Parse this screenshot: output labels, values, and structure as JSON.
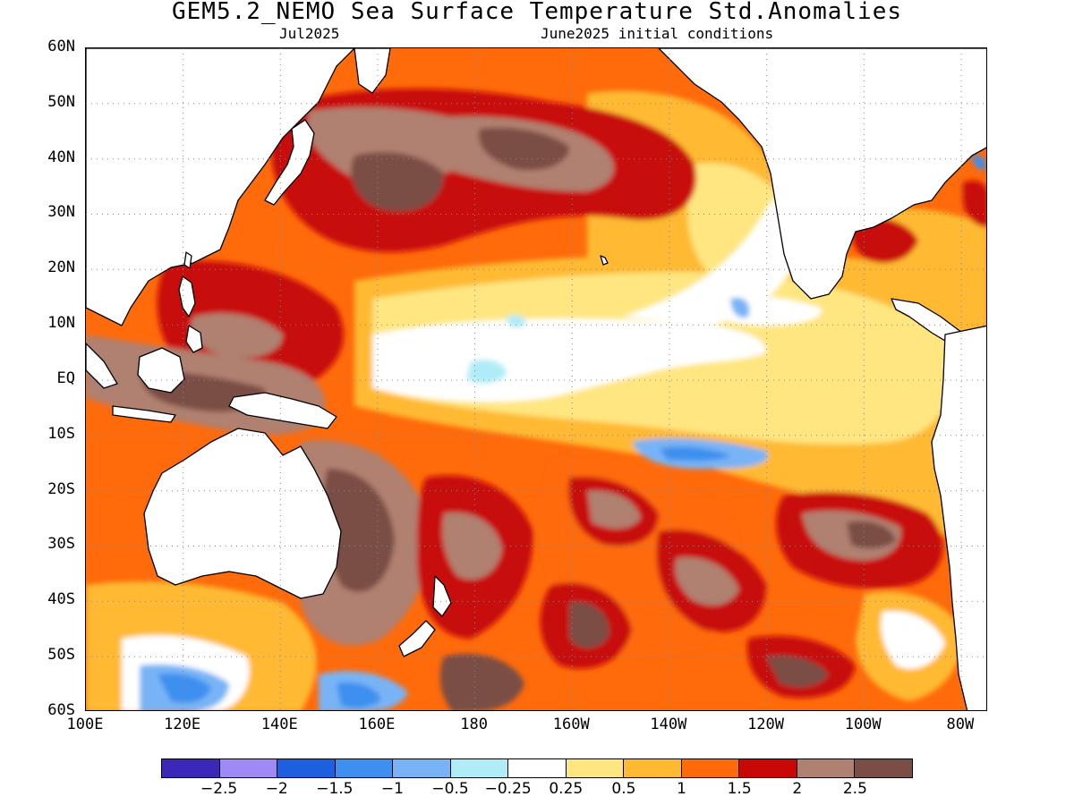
{
  "title": "GEM5.2_NEMO Sea Surface Temperature Std.Anomalies",
  "subtitle_left": "Jul2025",
  "subtitle_right": "June2025 initial conditions",
  "lat_labels": [
    "60N",
    "50N",
    "40N",
    "30N",
    "20N",
    "10N",
    "EQ",
    "10S",
    "20S",
    "30S",
    "40S",
    "50S",
    "60S"
  ],
  "lon_labels": [
    "100E",
    "120E",
    "140E",
    "160E",
    "180",
    "160W",
    "140W",
    "120W",
    "100W",
    "80W"
  ],
  "colorbar": {
    "colors": [
      "#3b28b8",
      "#9f8af5",
      "#1e5fe0",
      "#3d8ff0",
      "#78b4f5",
      "#b0ecf8",
      "#ffffff",
      "#ffe680",
      "#ffb933",
      "#ff6a0a",
      "#c80707",
      "#b08070",
      "#7a4e45"
    ],
    "labels": [
      "−2.5",
      "−2",
      "−1.5",
      "−1",
      "−0.5",
      "−0.25",
      "0.25",
      "0.5",
      "1",
      "1.5",
      "2",
      "2.5"
    ]
  },
  "chart_data": {
    "type": "heatmap",
    "title": "GEM5.2_NEMO Sea Surface Temperature Std.Anomalies",
    "xlabel": "",
    "ylabel": "",
    "x_range": [
      "100E",
      "70W"
    ],
    "y_range": [
      "60S",
      "60N"
    ],
    "grid": true,
    "legend": "bottom",
    "levels": [
      -2.5,
      -2,
      -1.5,
      -1,
      -0.5,
      -0.25,
      0.25,
      0.5,
      1,
      1.5,
      2,
      2.5
    ]
  }
}
